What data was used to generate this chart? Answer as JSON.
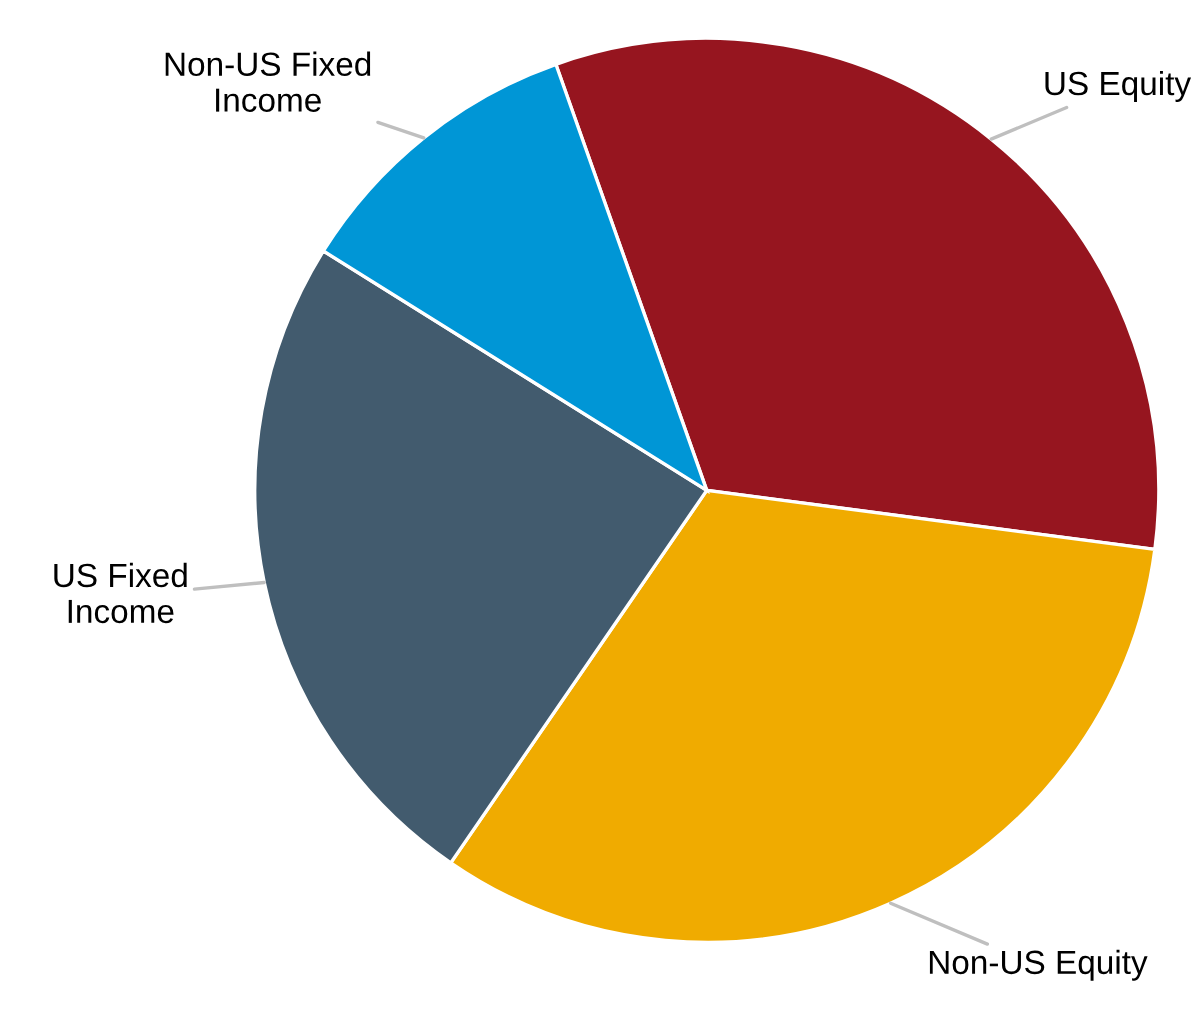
{
  "chart_data": {
    "type": "pie",
    "categories": [
      "US Equity",
      "Non-US Equity",
      "US Fixed\nIncome",
      "Non-US Fixed\nIncome"
    ],
    "values": [
      32.5,
      32.5,
      24.3,
      10.7
    ],
    "colors": [
      "#96151f",
      "#f0ab00",
      "#425b6e",
      "#0096d6"
    ],
    "legend": false
  }
}
